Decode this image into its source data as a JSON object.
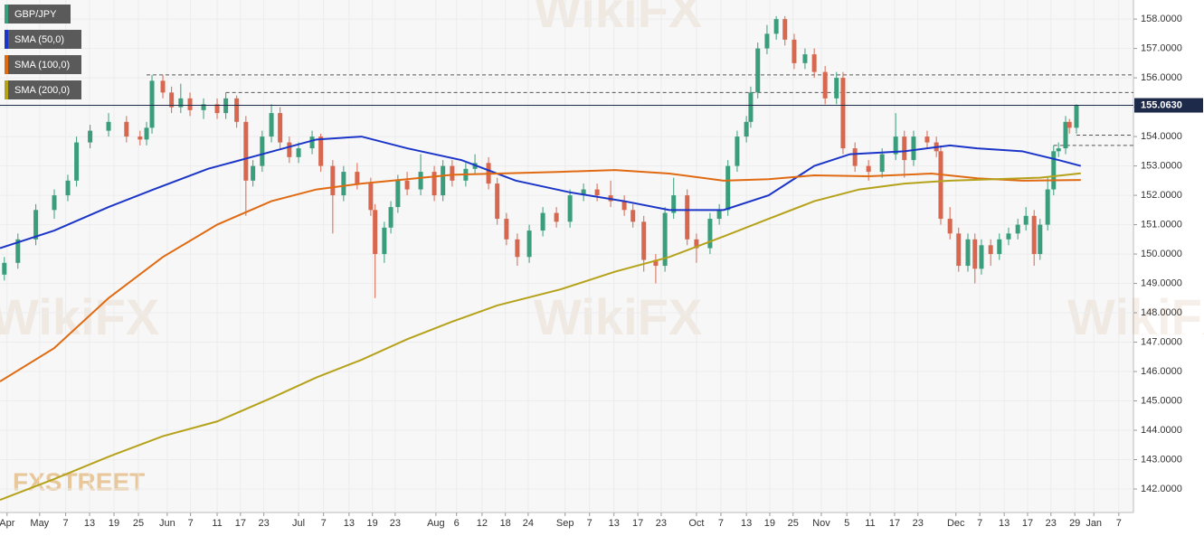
{
  "chart_data": {
    "type": "candlestick",
    "legend": [
      "GBP/JPY",
      "SMA (50,0)",
      "SMA (100,0)",
      "SMA (200,0)"
    ],
    "legend_position": "top-left",
    "grid": true,
    "logo": "FXSTREET",
    "watermark": "WikiFX",
    "up_color": "#3a9d7b",
    "down_color": "#d8674f",
    "xlim": [
      -1.3,
      207.5
    ],
    "ylim": [
      141.2,
      158.65
    ],
    "yticks": [
      {
        "value": 142,
        "label": "142.0000"
      },
      {
        "value": 143,
        "label": "143.0000"
      },
      {
        "value": 144,
        "label": "144.0000"
      },
      {
        "value": 145,
        "label": "145.0000"
      },
      {
        "value": 146,
        "label": "146.0000"
      },
      {
        "value": 147,
        "label": "147.0000"
      },
      {
        "value": 148,
        "label": "148.0000"
      },
      {
        "value": 149,
        "label": "149.0000"
      },
      {
        "value": 150,
        "label": "150.0000"
      },
      {
        "value": 151,
        "label": "151.0000"
      },
      {
        "value": 152,
        "label": "152.0000"
      },
      {
        "value": 153,
        "label": "153.0000"
      },
      {
        "value": 154,
        "label": "154.0000"
      },
      {
        "value": 155,
        "label": "155.0000"
      },
      {
        "value": 156,
        "label": "156.0000"
      },
      {
        "value": 157,
        "label": "157.0000"
      },
      {
        "value": 158,
        "label": "158.0000"
      }
    ],
    "xticks": [
      {
        "value": 0,
        "label": "Apr"
      },
      {
        "value": 6,
        "label": "May"
      },
      {
        "value": 10.8,
        "label": "7"
      },
      {
        "value": 15.2,
        "label": "13"
      },
      {
        "value": 19.7,
        "label": "19"
      },
      {
        "value": 24.2,
        "label": "25"
      },
      {
        "value": 29.5,
        "label": "Jun"
      },
      {
        "value": 33.8,
        "label": "7"
      },
      {
        "value": 38.7,
        "label": "11"
      },
      {
        "value": 43,
        "label": "17"
      },
      {
        "value": 47.3,
        "label": "23"
      },
      {
        "value": 53.7,
        "label": "Jul"
      },
      {
        "value": 58.3,
        "label": "7"
      },
      {
        "value": 63,
        "label": "13"
      },
      {
        "value": 67.3,
        "label": "19"
      },
      {
        "value": 71.5,
        "label": "23"
      },
      {
        "value": 79,
        "label": "Aug"
      },
      {
        "value": 82.8,
        "label": "6"
      },
      {
        "value": 87.5,
        "label": "12"
      },
      {
        "value": 91.8,
        "label": "18"
      },
      {
        "value": 96,
        "label": "24"
      },
      {
        "value": 102.8,
        "label": "Sep"
      },
      {
        "value": 107.3,
        "label": "7"
      },
      {
        "value": 111.8,
        "label": "13"
      },
      {
        "value": 116.2,
        "label": "17"
      },
      {
        "value": 120.5,
        "label": "23"
      },
      {
        "value": 127,
        "label": "Oct"
      },
      {
        "value": 131.5,
        "label": "7"
      },
      {
        "value": 136.2,
        "label": "13"
      },
      {
        "value": 140.5,
        "label": "19"
      },
      {
        "value": 144.8,
        "label": "25"
      },
      {
        "value": 150,
        "label": "Nov"
      },
      {
        "value": 154.7,
        "label": "5"
      },
      {
        "value": 159,
        "label": "11"
      },
      {
        "value": 163.5,
        "label": "17"
      },
      {
        "value": 167.8,
        "label": "23"
      },
      {
        "value": 174.8,
        "label": "Dec"
      },
      {
        "value": 179.2,
        "label": "7"
      },
      {
        "value": 183.7,
        "label": "13"
      },
      {
        "value": 188,
        "label": "17"
      },
      {
        "value": 192.3,
        "label": "23"
      },
      {
        "value": 196.7,
        "label": "29"
      },
      {
        "value": 200.2,
        "label": "Jan"
      },
      {
        "value": 204.8,
        "label": "7"
      }
    ],
    "last_price": {
      "value": 155.063,
      "label": "155.0630"
    },
    "levels": [
      {
        "value": 156.1,
        "from": 25.7
      },
      {
        "value": 155.5,
        "from": 40.3
      },
      {
        "value": 154.05,
        "from": 197
      },
      {
        "value": 153.7,
        "from": 192.8
      }
    ],
    "series": [
      {
        "name": "GBP/JPY",
        "x": [
          -0.5,
          2,
          5.3,
          8.7,
          11.2,
          12.8,
          15.3,
          18.7,
          22,
          24.5,
          25.7,
          26.7,
          28.7,
          30.3,
          32,
          33.7,
          36.2,
          38.7,
          40.3,
          42.3,
          44,
          45.3,
          47,
          48.7,
          50.3,
          52,
          53.7,
          56.2,
          57.8,
          60,
          62,
          64.5,
          67,
          67.8,
          69.5,
          70.7,
          72,
          73.7,
          76.2,
          78.7,
          80.3,
          82,
          84.5,
          86.2,
          88.7,
          90.3,
          92,
          94,
          96.2,
          98.7,
          101.2,
          103.7,
          106.2,
          108.7,
          111.2,
          113.7,
          115.3,
          117.3,
          119.5,
          121.2,
          122.8,
          125.3,
          127,
          129.5,
          131.2,
          132.8,
          134.5,
          136.2,
          137,
          138.3,
          140,
          141.7,
          143.3,
          145,
          147,
          148.7,
          150.7,
          152.8,
          154,
          156.2,
          158.7,
          161.2,
          163.7,
          165.3,
          167,
          169.5,
          171.2,
          172,
          173.7,
          175.3,
          177,
          178.3,
          179.5,
          181.2,
          182.8,
          184.5,
          186.2,
          187.7,
          189.2,
          190.3,
          191.7,
          192.8,
          193.7,
          195,
          195.7,
          197
        ],
        "open": [
          149.3,
          149.7,
          150.5,
          151.5,
          152.0,
          152.5,
          153.8,
          154.2,
          154.5,
          154.0,
          153.9,
          154.3,
          155.9,
          155.5,
          155.0,
          155.3,
          154.9,
          155.1,
          154.8,
          155.3,
          154.5,
          152.5,
          153.0,
          154.0,
          154.8,
          153.8,
          153.3,
          153.6,
          154.0,
          153.0,
          152.0,
          152.8,
          152.4,
          151.5,
          150.0,
          150.9,
          151.6,
          152.5,
          152.2,
          152.8,
          152.0,
          153.0,
          152.5,
          152.9,
          153.1,
          152.4,
          151.2,
          150.5,
          149.9,
          150.8,
          151.4,
          151.1,
          152.0,
          152.2,
          152.0,
          151.8,
          151.5,
          151.1,
          149.8,
          149.6,
          151.4,
          152.0,
          150.5,
          150.2,
          151.2,
          151.5,
          153.0,
          154.0,
          154.5,
          155.5,
          157.0,
          157.5,
          158.0,
          157.3,
          156.5,
          156.8,
          156.2,
          155.3,
          156.0,
          153.6,
          153.0,
          152.8,
          153.4,
          154.0,
          153.2,
          154.0,
          153.8,
          153.5,
          151.2,
          150.7,
          149.6,
          150.5,
          149.5,
          150.3,
          150.0,
          150.5,
          150.7,
          151.0,
          151.3,
          150.0,
          151.0,
          152.2,
          153.5,
          153.6,
          154.5,
          154.3
        ],
        "high": [
          149.9,
          150.7,
          151.7,
          152.2,
          152.7,
          154.0,
          154.4,
          154.8,
          154.7,
          154.2,
          154.5,
          156.1,
          156.1,
          155.7,
          155.8,
          155.5,
          155.3,
          155.3,
          155.5,
          155.4,
          154.7,
          153.2,
          154.2,
          155.1,
          155.0,
          154.0,
          153.8,
          154.2,
          154.1,
          153.2,
          153.0,
          153.1,
          152.6,
          151.7,
          151.1,
          151.8,
          152.7,
          152.8,
          153.4,
          153.0,
          153.2,
          153.2,
          153.1,
          153.4,
          153.3,
          152.6,
          151.4,
          150.7,
          151.0,
          151.6,
          151.6,
          152.2,
          152.4,
          152.4,
          152.5,
          152.0,
          151.7,
          151.3,
          150.0,
          151.6,
          152.6,
          152.2,
          150.7,
          151.4,
          151.7,
          153.2,
          154.2,
          154.7,
          155.7,
          157.2,
          157.8,
          158.1,
          158.1,
          157.5,
          157.0,
          157.0,
          156.4,
          156.2,
          156.2,
          153.8,
          153.2,
          153.6,
          154.8,
          154.2,
          154.2,
          154.2,
          154.0,
          153.7,
          151.6,
          150.9,
          150.7,
          150.7,
          150.5,
          150.5,
          150.7,
          150.9,
          151.2,
          151.6,
          151.5,
          151.2,
          152.6,
          153.7,
          153.8,
          154.7,
          154.6,
          155.1
        ],
        "low": [
          149.1,
          149.5,
          150.3,
          151.2,
          151.8,
          152.3,
          153.6,
          154.0,
          153.8,
          153.7,
          153.7,
          154.1,
          155.3,
          154.8,
          154.8,
          154.7,
          154.6,
          154.6,
          154.6,
          154.3,
          151.3,
          152.3,
          152.8,
          153.8,
          153.6,
          153.1,
          153.1,
          153.4,
          152.8,
          150.7,
          151.8,
          152.2,
          151.3,
          148.5,
          149.7,
          150.7,
          151.4,
          152.0,
          152.0,
          151.8,
          151.8,
          152.3,
          152.3,
          152.7,
          152.2,
          151.0,
          150.3,
          149.6,
          149.7,
          150.6,
          150.9,
          150.9,
          151.8,
          151.8,
          151.6,
          151.3,
          150.9,
          149.4,
          149.0,
          149.4,
          151.2,
          150.3,
          149.7,
          150.0,
          151.0,
          151.3,
          152.8,
          153.8,
          154.3,
          155.3,
          156.8,
          157.3,
          157.1,
          156.3,
          156.3,
          156.0,
          155.1,
          155.1,
          153.4,
          152.8,
          152.5,
          152.6,
          153.2,
          152.6,
          153.0,
          153.6,
          153.3,
          151.0,
          150.5,
          149.4,
          149.4,
          149.0,
          149.3,
          149.6,
          149.8,
          150.3,
          150.5,
          150.8,
          149.6,
          149.8,
          150.8,
          152.0,
          153.3,
          153.4,
          154.1,
          154.1
        ],
        "close": [
          149.7,
          150.5,
          151.5,
          152.0,
          152.5,
          153.8,
          154.2,
          154.5,
          154.0,
          153.9,
          154.3,
          155.9,
          155.5,
          155.0,
          155.3,
          154.9,
          155.1,
          154.8,
          155.3,
          154.5,
          152.5,
          153.0,
          154.0,
          154.8,
          153.8,
          153.3,
          153.6,
          154.0,
          153.0,
          152.0,
          152.8,
          152.4,
          151.5,
          150.0,
          150.9,
          151.6,
          152.5,
          152.2,
          152.8,
          152.0,
          153.0,
          152.5,
          152.9,
          153.1,
          152.4,
          151.2,
          150.5,
          149.9,
          150.8,
          151.4,
          151.1,
          152.0,
          152.2,
          152.0,
          151.8,
          151.5,
          151.1,
          149.8,
          149.6,
          151.4,
          152.0,
          150.5,
          150.2,
          151.2,
          151.5,
          153.0,
          154.0,
          154.5,
          155.5,
          157.0,
          157.5,
          158.0,
          157.3,
          156.5,
          156.8,
          156.2,
          155.3,
          156.0,
          153.6,
          153.0,
          152.8,
          153.4,
          154.0,
          153.2,
          154.0,
          153.8,
          153.5,
          151.2,
          150.7,
          149.6,
          150.5,
          149.5,
          150.3,
          150.0,
          150.5,
          150.7,
          151.0,
          151.3,
          150.0,
          151.0,
          152.2,
          153.5,
          153.6,
          154.5,
          154.3,
          155.063
        ]
      },
      {
        "name": "SMA (50,0)",
        "type": "line",
        "color": "#1a35c8",
        "x": [
          -1.3,
          8.7,
          18.7,
          27,
          37,
          47,
          57,
          65.3,
          73.7,
          83.7,
          93.7,
          103.7,
          113.7,
          122,
          132,
          140.3,
          148.7,
          155.3,
          165.3,
          173.7,
          178.7,
          187,
          193.7,
          197.8
        ],
        "values": [
          150.2,
          150.8,
          151.6,
          152.2,
          152.9,
          153.4,
          153.9,
          154.0,
          153.6,
          153.2,
          152.5,
          152.1,
          151.8,
          151.5,
          151.5,
          152.0,
          153.0,
          153.4,
          153.5,
          153.7,
          153.6,
          153.5,
          153.2,
          153.0
        ]
      },
      {
        "name": "SMA (100,0)",
        "type": "line",
        "color": "#e06a12",
        "x": [
          -1.3,
          8.7,
          18.7,
          28.7,
          38.7,
          48.7,
          57,
          65.3,
          73.7,
          82,
          92,
          102,
          112,
          122,
          132,
          140.3,
          148.7,
          158.7,
          170.3,
          178.7,
          187,
          197.8
        ],
        "values": [
          145.66,
          146.8,
          148.5,
          149.9,
          151.0,
          151.8,
          152.2,
          152.4,
          152.55,
          152.7,
          152.75,
          152.8,
          152.86,
          152.74,
          152.5,
          152.55,
          152.68,
          152.65,
          152.74,
          152.58,
          152.5,
          152.52
        ]
      },
      {
        "name": "SMA (200,0)",
        "type": "line",
        "color": "#b5a21a",
        "x": [
          -1.3,
          8.7,
          18.7,
          28.7,
          38.7,
          48.7,
          57,
          65.3,
          73.7,
          82,
          90.3,
          102,
          112,
          122,
          132,
          140.3,
          148.7,
          157,
          165.3,
          173.7,
          182,
          190.3,
          197.8
        ],
        "values": [
          141.63,
          142.34,
          143.1,
          143.8,
          144.3,
          145.1,
          145.8,
          146.4,
          147.1,
          147.7,
          148.25,
          148.8,
          149.4,
          149.9,
          150.6,
          151.2,
          151.8,
          152.2,
          152.4,
          152.5,
          152.55,
          152.6,
          152.75
        ]
      }
    ]
  }
}
